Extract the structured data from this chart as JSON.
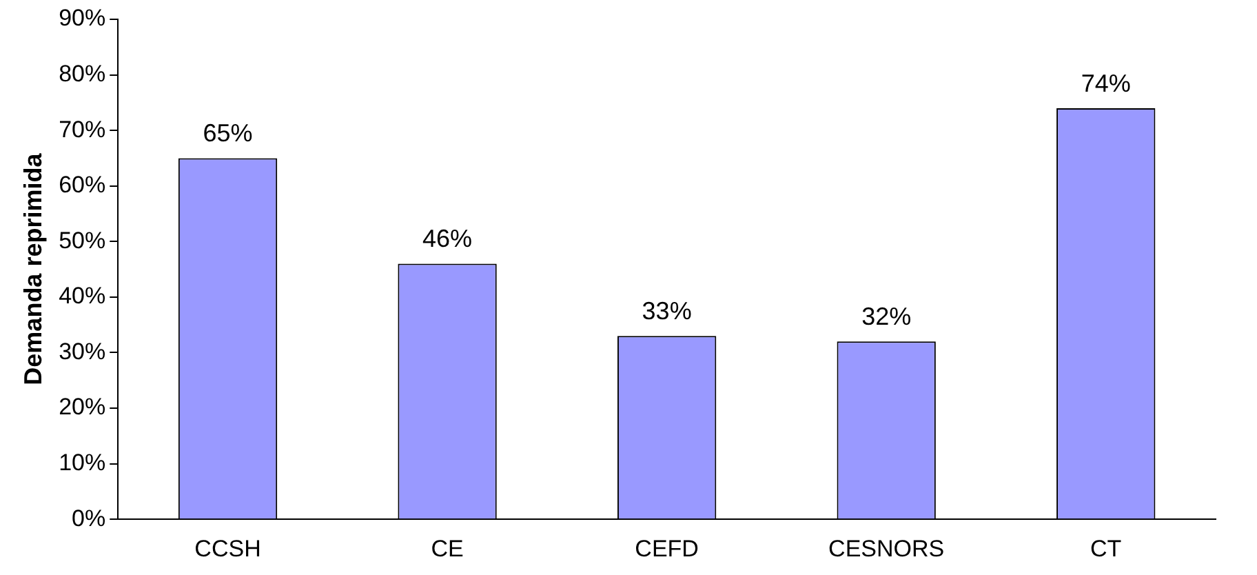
{
  "chart_data": {
    "type": "bar",
    "ylabel": "Demanda reprimida",
    "categories": [
      "CCSH",
      "CE",
      "CEFD",
      "CESNORS",
      "CT"
    ],
    "values": [
      65,
      46,
      33,
      32,
      74
    ],
    "value_labels": [
      "65%",
      "46%",
      "33%",
      "32%",
      "74%"
    ],
    "color": "#9999ff",
    "ylim": [
      0,
      90
    ],
    "yticks": [
      {
        "value": 0,
        "label": "0%"
      },
      {
        "value": 10,
        "label": "10%"
      },
      {
        "value": 20,
        "label": "20%"
      },
      {
        "value": 30,
        "label": "30%"
      },
      {
        "value": 40,
        "label": "40%"
      },
      {
        "value": 50,
        "label": "50%"
      },
      {
        "value": 60,
        "label": "60%"
      },
      {
        "value": 70,
        "label": "70%"
      },
      {
        "value": 80,
        "label": "80%"
      },
      {
        "value": 90,
        "label": "90%"
      }
    ],
    "grid": false,
    "legend": false
  }
}
